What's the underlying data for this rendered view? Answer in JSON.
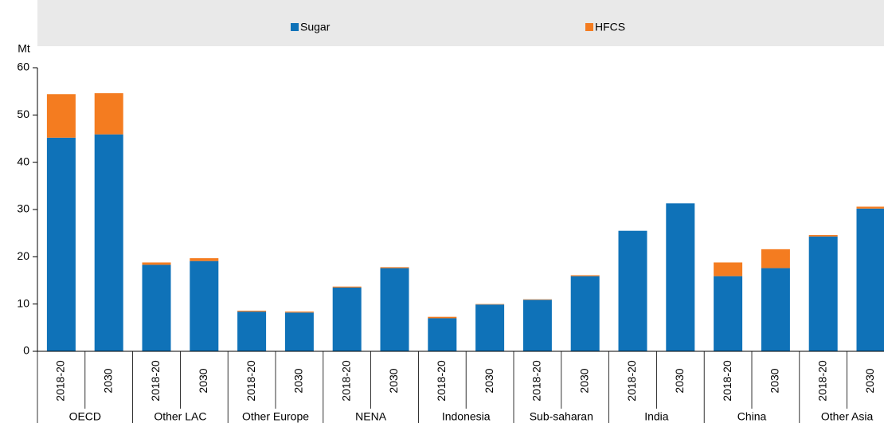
{
  "chart_data": {
    "type": "stacked-bar",
    "y_label": "Mt",
    "categories": [
      "2018-20",
      "2030",
      "2018-20",
      "2030",
      "2018-20",
      "2030",
      "2018-20",
      "2030",
      "2018-20",
      "2030",
      "2018-20",
      "2030",
      "2018-20",
      "2030",
      "2018-20",
      "2030",
      "2018-20",
      "2030"
    ],
    "groups": [
      "OECD",
      "Other LAC",
      "Other Europe",
      "NENA",
      "Indonesia",
      "Sub-saharan",
      "India",
      "China",
      "Other Asia"
    ],
    "series": [
      {
        "name": "Sugar",
        "color": "#0f72b8",
        "values": [
          45.2,
          45.9,
          18.3,
          19.1,
          8.4,
          8.2,
          13.5,
          17.6,
          7.0,
          9.9,
          10.9,
          15.9,
          25.5,
          31.3,
          15.9,
          17.6,
          24.3,
          30.2
        ]
      },
      {
        "name": "HFCS",
        "color": "#f47c20",
        "values": [
          9.2,
          8.7,
          0.5,
          0.6,
          0.2,
          0.2,
          0.2,
          0.2,
          0.3,
          0.1,
          0.1,
          0.2,
          0,
          0,
          2.9,
          4.0,
          0.3,
          0.4
        ]
      }
    ],
    "ylim": [
      0,
      60
    ],
    "yticks": [
      0,
      10,
      20,
      30,
      40,
      50,
      60
    ],
    "grid": false,
    "legend": "top"
  }
}
